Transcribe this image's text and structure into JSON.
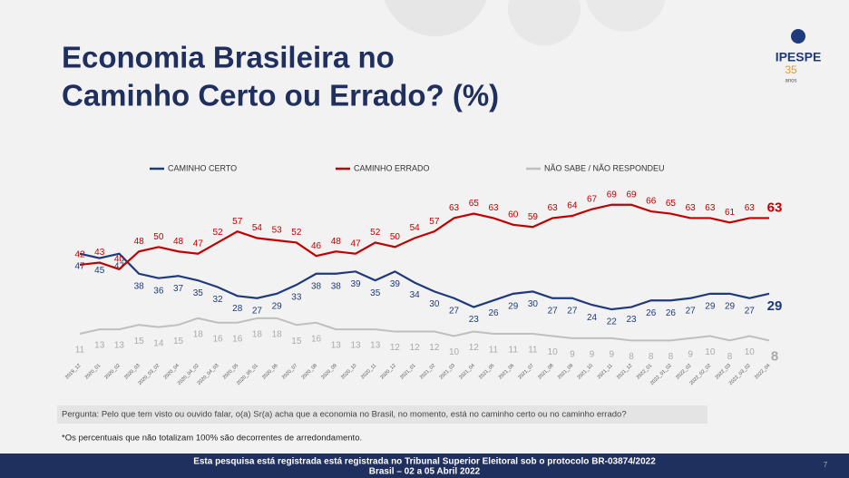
{
  "logo": {
    "name": "IPESPE",
    "years": "35",
    "unit": "anos"
  },
  "chart_data": {
    "type": "line",
    "title": [
      "Economia Brasileira no",
      "Caminho Certo ou Errado? (%)"
    ],
    "categories": [
      "2019_12",
      "2020_01",
      "2020_02",
      "2020_03",
      "2020_03_02",
      "2020_04",
      "2020_04_02",
      "2020_04_03",
      "2020_05",
      "2020_05_01",
      "2020_06",
      "2020_07",
      "2020_08",
      "2020_09",
      "2020_10",
      "2020_11",
      "2020_12",
      "2021_01",
      "2021_02",
      "2021_03",
      "2021_04",
      "2021_05",
      "2021_06",
      "2021_07",
      "2021_08",
      "2021_09",
      "2021_10",
      "2021_11",
      "2021_12",
      "2022_01",
      "2022_01_02",
      "2022_02",
      "2022_02_02",
      "2022_03",
      "2022_03_02",
      "2022_04"
    ],
    "series": [
      {
        "name": "CAMINHO CERTO",
        "color": "#1f3a7a",
        "values": [
          47,
          45,
          47,
          38,
          36,
          37,
          35,
          32,
          28,
          27,
          29,
          33,
          38,
          38,
          39,
          35,
          39,
          34,
          30,
          27,
          23,
          26,
          29,
          30,
          27,
          27,
          24,
          22,
          23,
          26,
          26,
          27,
          29,
          29,
          27,
          29
        ]
      },
      {
        "name": "CAMINHO ERRADO",
        "color": "#c00000",
        "values": [
          42,
          43,
          40,
          48,
          50,
          48,
          47,
          52,
          57,
          54,
          53,
          52,
          46,
          48,
          47,
          52,
          50,
          54,
          57,
          63,
          65,
          63,
          60,
          59,
          63,
          64,
          67,
          69,
          69,
          66,
          65,
          63,
          63,
          61,
          63,
          63
        ]
      },
      {
        "name": "NÃO SABE / NÃO RESPONDEU",
        "color": "#bfbfbf",
        "values": [
          11,
          13,
          13,
          15,
          14,
          15,
          18,
          16,
          16,
          18,
          18,
          15,
          16,
          13,
          13,
          13,
          12,
          12,
          12,
          10,
          12,
          11,
          11,
          11,
          10,
          9,
          9,
          9,
          8,
          8,
          8,
          9,
          10,
          8,
          10,
          8
        ]
      }
    ],
    "ylim": [
      0,
      75
    ]
  },
  "question": "Pergunta: Pelo que tem visto ou ouvido falar, o(a) Sr(a) acha que a economia no Brasil, no momento, está no caminho certo ou no caminho errado?",
  "footnote": "*Os percentuais que não totalizam 100% são decorrentes de arredondamento.",
  "footer": [
    "Esta pesquisa está registrada está registrada no Tribunal Superior Eleitoral sob o protocolo BR-03874/2022",
    "Brasil – 02 a 05 Abril 2022"
  ],
  "page": "7"
}
